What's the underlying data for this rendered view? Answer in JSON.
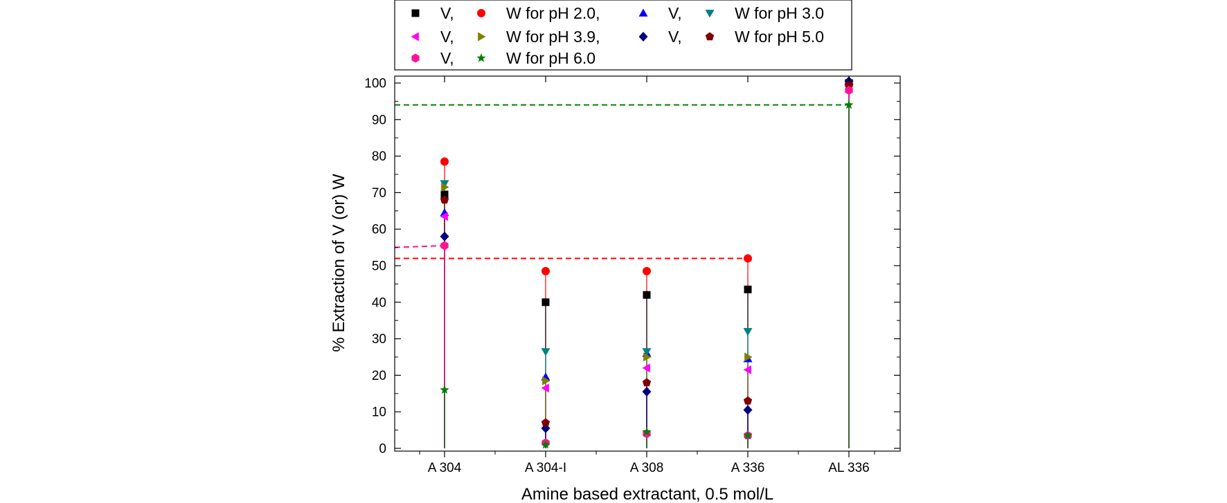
{
  "chart_data": {
    "type": "scatter",
    "xlabel": "Amine based extractant, 0.5 mol/L",
    "ylabel": "% Extraction of V (or) W",
    "ylim": [
      0,
      102
    ],
    "yticks": [
      0,
      10,
      20,
      30,
      40,
      50,
      60,
      70,
      80,
      90,
      100
    ],
    "ytick_labels": [
      "0",
      "10",
      "20",
      "30",
      "40",
      "50",
      "60",
      "70",
      "80",
      "90",
      "100"
    ],
    "categories": [
      "A 304",
      "A 304-I",
      "A 308",
      "A 336",
      "AL 336"
    ],
    "legend_position": "top-center",
    "legend_text": {
      "v_ph20": "V,",
      "w_ph20": "W for pH 2.0,",
      "v_ph30": "V,",
      "w_ph30": "W for pH 3.0",
      "v_ph39": "V,",
      "w_ph39": "W for pH 3.9,",
      "v_ph50": "V,",
      "w_ph50": "W for pH 5.0",
      "v_ph60": "V,",
      "w_ph60": "W for pH 6.0"
    },
    "series": [
      {
        "key": "v_ph20",
        "name": "V, pH 2.0",
        "marker": "square",
        "color": "#000000",
        "values": [
          69.5,
          40.0,
          42.0,
          43.5,
          100
        ]
      },
      {
        "key": "w_ph20",
        "name": "W for pH 2.0",
        "marker": "circle",
        "color": "#ff0000",
        "values": [
          78.5,
          48.5,
          48.5,
          52.0,
          99.5
        ]
      },
      {
        "key": "v_ph30",
        "name": "V, pH 3.0",
        "marker": "triangle-up",
        "color": "#0000ff",
        "values": [
          64.5,
          19.5,
          26.0,
          24.5,
          100.5
        ]
      },
      {
        "key": "w_ph30",
        "name": "W for pH 3.0",
        "marker": "triangle-down",
        "color": "#008080",
        "values": [
          72.5,
          26.5,
          26.5,
          32.0,
          100
        ]
      },
      {
        "key": "v_ph39",
        "name": "V, pH 3.9",
        "marker": "triangle-left",
        "color": "#ff00ff",
        "values": [
          63.5,
          16.5,
          22.0,
          21.5,
          99.5
        ]
      },
      {
        "key": "w_ph39",
        "name": "W for pH 3.9",
        "marker": "triangle-right",
        "color": "#808000",
        "values": [
          71.5,
          18.5,
          25.0,
          25.0,
          100
        ]
      },
      {
        "key": "v_ph50",
        "name": "V, pH 5.0",
        "marker": "diamond",
        "color": "#000080",
        "values": [
          58.0,
          5.5,
          15.5,
          10.5,
          100.5
        ]
      },
      {
        "key": "w_ph50",
        "name": "W for pH 5.0",
        "marker": "pentagon",
        "color": "#800000",
        "values": [
          68.0,
          7.0,
          18.0,
          13.0,
          99.5
        ]
      },
      {
        "key": "v_ph60",
        "name": "V, pH 6.0",
        "marker": "hexagon",
        "color": "#ff1493",
        "values": [
          55.5,
          1.5,
          4.0,
          3.5,
          98.0
        ]
      },
      {
        "key": "w_ph60",
        "name": "W for pH 6.0",
        "marker": "star",
        "color": "#008000",
        "values": [
          16.0,
          1.0,
          4.5,
          3.5,
          94.0
        ]
      }
    ],
    "reference_lines": [
      {
        "name": "red-dashed",
        "color": "#ff0000",
        "y": 52.0,
        "x_from": -1,
        "x_to": 3
      },
      {
        "name": "green-dashed",
        "color": "#008000",
        "y": 94.0,
        "x_from": -1,
        "x_to": 4
      },
      {
        "name": "magenta-dashed",
        "color": "#ff1493",
        "y_from": 55.0,
        "y_to": 55.5,
        "x_from": -1,
        "x_to": 0
      }
    ]
  }
}
